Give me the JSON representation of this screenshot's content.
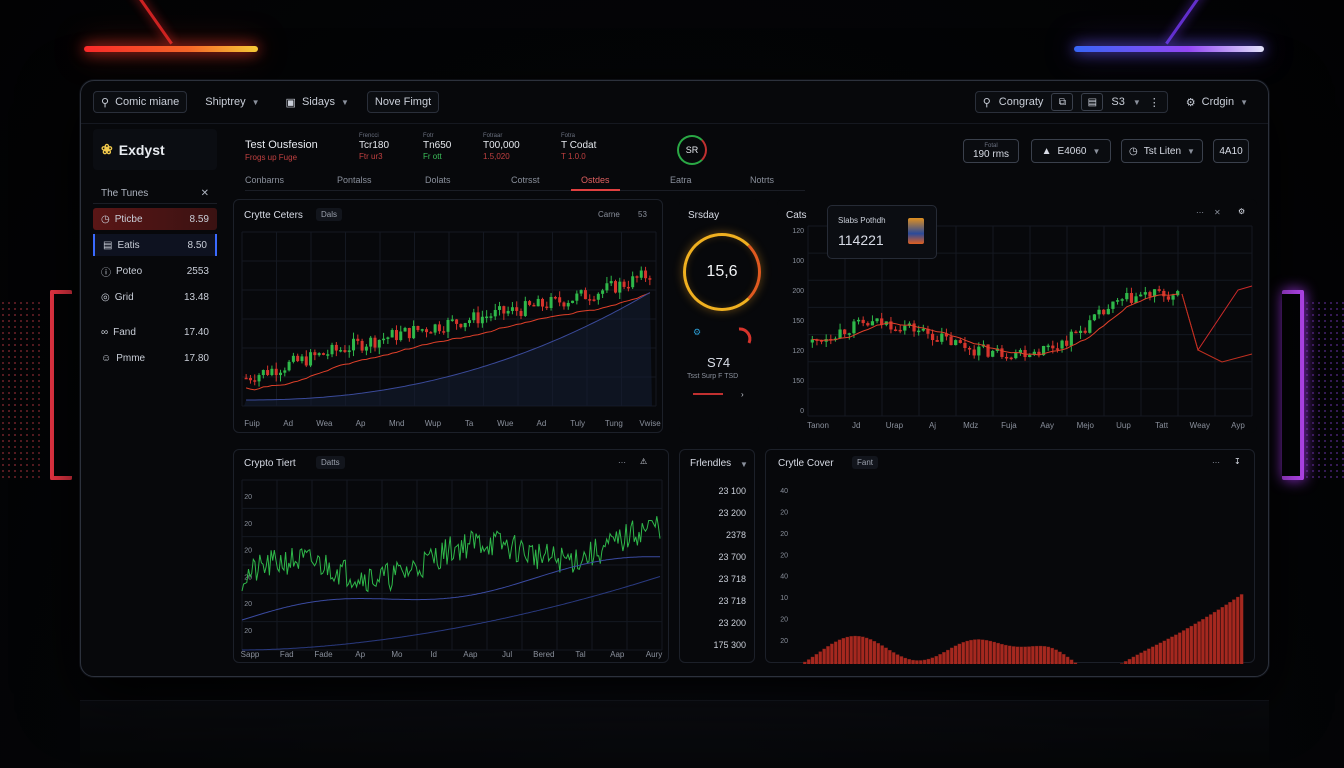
{
  "topbar": {
    "search_label": "Comic miane",
    "menu1": "Shiptrey",
    "menu2": "Sidays",
    "menu3": "Nove Fimgt",
    "search_right": "Congraty",
    "box3": "S3",
    "right_menu": "Crdgin"
  },
  "sidebar": {
    "brand": "Exdyst",
    "section": "The Tunes",
    "items": [
      {
        "label": "Pticbe",
        "value": "8.59"
      },
      {
        "label": "Eatis",
        "value": "8.50"
      },
      {
        "label": "Poteo",
        "value": "2553"
      },
      {
        "label": "Grid",
        "value": "13.48"
      },
      {
        "label": "Fand",
        "value": "17.40"
      },
      {
        "label": "Pmme",
        "value": "17.80"
      }
    ]
  },
  "header": {
    "title": "Test Ousfesion",
    "subtitle": "Frogs up Fuge",
    "stats": [
      {
        "key": "Frencci",
        "value": "Tcr180",
        "delta": "Ftr ur3"
      },
      {
        "key": "Fotr",
        "value": "Tn650",
        "delta": "Fr ott"
      },
      {
        "key": "Fotraar",
        "value": "T00,000",
        "delta": "1.5,020"
      },
      {
        "key": "Fotra",
        "value": "T Codat",
        "delta": "T 1.0.0"
      }
    ],
    "ring": "SR",
    "right1_key": "Fotal",
    "right1": "190 rms",
    "right2": "E4060",
    "right3": "Tst Liten",
    "right4": "4A10"
  },
  "tabs": [
    "Conbarns",
    "Pontalss",
    "Dolats",
    "Cotrsst",
    "Ostdes",
    "Eatra",
    "Notrts"
  ],
  "panel1": {
    "title": "Crytte Ceters",
    "chip": "Dals",
    "tools": "Carne",
    "tool2": "53"
  },
  "panel2": {
    "title": "Srsday",
    "gauge": "15,6",
    "value": "S74",
    "caption": "Tsst Surp F TSD"
  },
  "panel3": {
    "title": "Cats",
    "card_label": "Slabs Pothdh",
    "card_value": "114221"
  },
  "panel4": {
    "title": "Crypto Tiert",
    "chip": "Datts"
  },
  "panel5": {
    "title": "Frlendles",
    "values": [
      "23 100",
      "23 200",
      "2378",
      "23 700",
      "23 718",
      "23 718",
      "23 200",
      "175 300"
    ]
  },
  "panel6": {
    "title": "Crytle Cover",
    "chip": "Fant"
  },
  "axes": {
    "p1_x": [
      "Fuip",
      "Ad",
      "Wea",
      "Ap",
      "Mnd",
      "Wup",
      "Ta",
      "Wue",
      "Ad",
      "Tuly",
      "Tung",
      "Vwise"
    ],
    "p3_x": [
      "Tanon",
      "Jd",
      "Urap",
      "Aj",
      "Mdz",
      "Fuja",
      "Aay",
      "Mejo",
      "Uup",
      "Tatt",
      "Weay",
      "Ayp"
    ],
    "p3_y": [
      "120",
      "100",
      "200",
      "150",
      "120",
      "150",
      "0"
    ],
    "p4_x": [
      "Sapp",
      "Fad",
      "Fade",
      "Ap",
      "Mo",
      "Id",
      "Aap",
      "Jul",
      "Bered",
      "Tal",
      "Aap",
      "Aury"
    ],
    "p4_y": [
      "20",
      "20",
      "20",
      "20",
      "20",
      "20"
    ],
    "p6_y": [
      "40",
      "20",
      "20",
      "20",
      "40",
      "10",
      "20",
      "20"
    ]
  },
  "colors": {
    "up": "#2fb84a",
    "down": "#d6342c",
    "accent": "#e04040",
    "gauge": "#f0b020",
    "bars": "#a5281f"
  }
}
